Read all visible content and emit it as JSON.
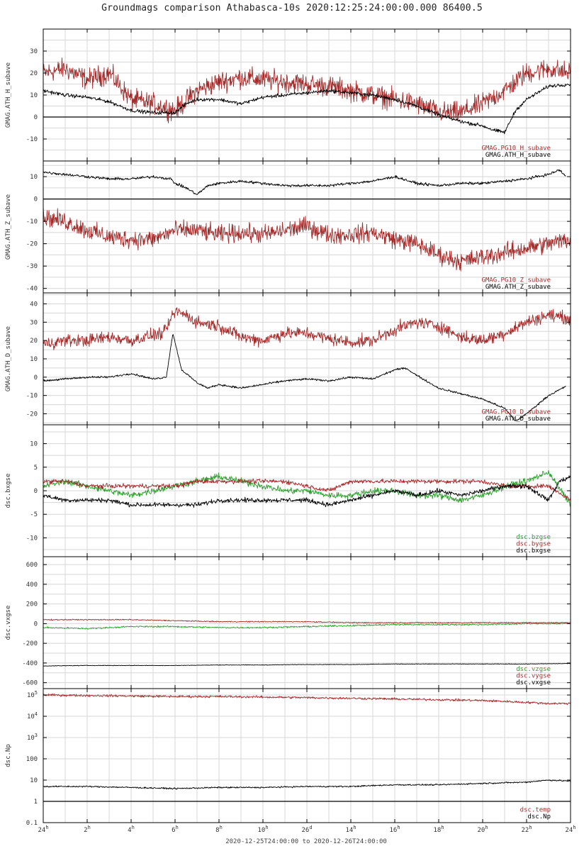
{
  "page": {
    "title": "Groundmags comparison Athabasca-10s 2020:12:25:24:00:00.000 86400.5",
    "x_range_label": "2020-12-25T24:00:00 to 2020-12-26T24:00:00"
  },
  "colors": {
    "red": "#a52a2a",
    "black": "#000000",
    "green": "#2ca02c",
    "grid": "#d7d7d7"
  },
  "chart_data": [
    {
      "type": "line",
      "ylabel": "GMAG.ATH_H_subave",
      "ylim": [
        -20,
        40
      ],
      "yticks": [
        30,
        20,
        10,
        0,
        -10
      ],
      "zero_line": 0,
      "legend": [
        "GMAG.PG10_H_subave",
        "GMAG.ATH_H_subave"
      ],
      "series": [
        {
          "name": "GMAG.PG10_H_subave",
          "color": "#a52a2a",
          "x": [
            0,
            1,
            2,
            3,
            4,
            5,
            6,
            7,
            8,
            9,
            10,
            11,
            12,
            13,
            14,
            15,
            16,
            17,
            18,
            19,
            20,
            21,
            22,
            23,
            24
          ],
          "y": [
            20,
            22,
            17,
            20,
            8,
            6,
            3,
            12,
            16,
            18,
            17,
            16,
            15,
            14,
            12,
            10,
            8,
            6,
            2,
            2,
            6,
            12,
            20,
            22,
            20
          ],
          "noise": 7
        },
        {
          "name": "GMAG.ATH_H_subave",
          "color": "#000000",
          "x": [
            0,
            1,
            2,
            3,
            4,
            5,
            6,
            6.5,
            7,
            8,
            9,
            10,
            11,
            12,
            13,
            14,
            15,
            16,
            17,
            18,
            19,
            20,
            20.5,
            21,
            21.5,
            22,
            23,
            24
          ],
          "y": [
            12,
            10,
            9,
            7,
            3,
            2,
            2,
            6,
            8,
            8,
            6,
            9,
            10,
            11,
            12,
            11,
            10,
            8,
            5,
            1,
            -2,
            -4,
            -6,
            -7,
            3,
            8,
            14,
            15
          ],
          "noise": 1.2
        }
      ]
    },
    {
      "type": "line",
      "ylabel": "GMAG.ATH_Z_subave",
      "ylim": [
        -42,
        17
      ],
      "yticks": [
        10,
        0,
        -10,
        -20,
        -30,
        -40
      ],
      "zero_line": 0,
      "legend": [
        "GMAG.PG10_Z_subave",
        "GMAG.ATH_Z_subave"
      ],
      "series": [
        {
          "name": "GMAG.PG10_Z_subave",
          "color": "#a52a2a",
          "x": [
            0,
            1,
            2,
            3,
            4,
            5,
            6,
            7,
            8,
            9,
            10,
            11,
            12,
            13,
            14,
            15,
            16,
            17,
            18,
            19,
            20,
            21,
            22,
            23,
            24
          ],
          "y": [
            -8,
            -10,
            -14,
            -17,
            -18,
            -18,
            -14,
            -14,
            -16,
            -15,
            -16,
            -14,
            -12,
            -16,
            -16,
            -15,
            -18,
            -20,
            -25,
            -28,
            -26,
            -24,
            -22,
            -20,
            -18
          ],
          "noise": 6
        },
        {
          "name": "GMAG.ATH_Z_subave",
          "color": "#000000",
          "x": [
            0,
            1,
            2,
            3,
            4,
            5,
            5.8,
            6,
            6.5,
            7,
            7.5,
            8,
            9,
            10,
            11,
            12,
            13,
            14,
            15,
            16,
            17,
            18,
            19,
            20,
            21,
            22,
            23,
            23.5,
            23.8
          ],
          "y": [
            12,
            11,
            10,
            9,
            9,
            10,
            9,
            7,
            5,
            2,
            6,
            7,
            8,
            7,
            6,
            6,
            6,
            7,
            8,
            10,
            7,
            6,
            7,
            7,
            8,
            9,
            11,
            13,
            10
          ],
          "noise": 0.9
        }
      ]
    },
    {
      "type": "line",
      "ylabel": "GMAG.ATH_D_subave",
      "ylim": [
        -26,
        46
      ],
      "yticks": [
        40,
        30,
        20,
        10,
        0,
        -10,
        -20
      ],
      "zero_line": null,
      "legend": [
        "GMAG.PG10_D_subave",
        "GMAG.ATH_D_subave"
      ],
      "series": [
        {
          "name": "GMAG.PG10_D_subave",
          "color": "#a52a2a",
          "x": [
            0,
            1,
            2,
            3,
            4,
            5,
            5.5,
            6,
            6.5,
            7,
            8,
            9,
            10,
            11,
            12,
            13,
            14,
            15,
            16,
            17,
            18,
            19,
            20,
            21,
            22,
            23,
            24
          ],
          "y": [
            18,
            20,
            20,
            22,
            20,
            23,
            24,
            36,
            34,
            30,
            28,
            22,
            20,
            24,
            24,
            21,
            19,
            20,
            26,
            30,
            28,
            22,
            20,
            24,
            30,
            34,
            32
          ],
          "noise": 5
        },
        {
          "name": "GMAG.ATH_D_subave",
          "color": "#000000",
          "x": [
            0,
            1,
            2,
            3,
            4,
            5,
            5.6,
            5.9,
            6.3,
            7,
            7.5,
            8,
            9,
            10,
            11,
            12,
            13,
            14,
            15,
            16,
            16.5,
            17,
            18,
            19,
            20,
            21,
            21.5,
            22,
            23,
            23.8
          ],
          "y": [
            -2,
            -1,
            0,
            0,
            2,
            -1,
            0,
            24,
            4,
            -3,
            -6,
            -4,
            -6,
            -4,
            -2,
            -1,
            -2,
            0,
            -1,
            4,
            5,
            1,
            -6,
            -9,
            -12,
            -17,
            -24,
            -20,
            -10,
            -5
          ],
          "noise": 0.8
        }
      ]
    },
    {
      "type": "line",
      "ylabel": "dsc.bxgse",
      "ylim": [
        -14,
        14
      ],
      "yticks": [
        10,
        5,
        0,
        -5,
        -10
      ],
      "zero_line": null,
      "legend": [
        "dsc.bzgse",
        "dsc.bygse",
        "dsc.bxgse"
      ],
      "series": [
        {
          "name": "dsc.bzgse",
          "color": "#2ca02c",
          "x": [
            0,
            1,
            2,
            3,
            4,
            5,
            6,
            7,
            8,
            9,
            10,
            11,
            12,
            13,
            14,
            15,
            16,
            17,
            18,
            19,
            20,
            21,
            22,
            23,
            24
          ],
          "y": [
            1,
            2,
            1,
            0,
            -1,
            0,
            1,
            2,
            3,
            2,
            1,
            0,
            0,
            -1,
            -1,
            0,
            0,
            -1,
            -1,
            -2,
            -1,
            1,
            2,
            4,
            -3
          ],
          "noise": 1
        },
        {
          "name": "dsc.bygse",
          "color": "#a52a2a",
          "x": [
            0,
            1,
            2,
            3,
            4,
            5,
            6,
            7,
            8,
            9,
            10,
            11,
            12,
            13,
            14,
            15,
            16,
            17,
            18,
            19,
            20,
            21,
            22,
            23,
            24
          ],
          "y": [
            2,
            2,
            1,
            1,
            1,
            1,
            1,
            2,
            2,
            2,
            2,
            2,
            1,
            0,
            2,
            2,
            2,
            2,
            2,
            2,
            2,
            1,
            1,
            1,
            -2
          ],
          "noise": 0.7
        },
        {
          "name": "dsc.bxgse",
          "color": "#000000",
          "x": [
            0,
            1,
            2,
            3,
            4,
            5,
            6,
            7,
            8,
            9,
            10,
            11,
            12,
            13,
            14,
            15,
            16,
            17,
            18,
            19,
            20,
            21,
            22,
            23,
            23.5,
            24
          ],
          "y": [
            -1,
            -2,
            -2,
            -2,
            -3,
            -3,
            -3,
            -3,
            -2,
            -2,
            -2,
            -2,
            -2,
            -3,
            -2,
            -1,
            0,
            -1,
            0,
            -1,
            0,
            1,
            1,
            -2,
            2,
            3
          ],
          "noise": 0.7
        }
      ]
    },
    {
      "type": "line",
      "ylabel": "dsc.vxgse",
      "ylim": [
        -660,
        680
      ],
      "yticks": [
        600,
        400,
        200,
        0,
        -200,
        -400,
        -600
      ],
      "zero_line": null,
      "legend": [
        "dsc.vzgse",
        "dsc.vygse",
        "dsc.vxgse"
      ],
      "series": [
        {
          "name": "dsc.vzgse",
          "color": "#2ca02c",
          "x": [
            0,
            2,
            4,
            6,
            8,
            10,
            12,
            14,
            16,
            18,
            20,
            22,
            24
          ],
          "y": [
            -40,
            -50,
            -30,
            -30,
            -40,
            -40,
            -30,
            -20,
            -10,
            -10,
            -10,
            0,
            0
          ],
          "noise": 12
        },
        {
          "name": "dsc.vygse",
          "color": "#a52a2a",
          "x": [
            0,
            2,
            4,
            6,
            8,
            10,
            12,
            14,
            16,
            18,
            20,
            22,
            24
          ],
          "y": [
            40,
            40,
            40,
            30,
            20,
            20,
            20,
            10,
            10,
            10,
            10,
            10,
            10
          ],
          "noise": 8
        },
        {
          "name": "dsc.vxgse",
          "color": "#000000",
          "x": [
            0,
            2,
            4,
            6,
            8,
            10,
            12,
            14,
            16,
            18,
            20,
            22,
            24
          ],
          "y": [
            -430,
            -425,
            -425,
            -425,
            -420,
            -420,
            -415,
            -415,
            -410,
            -410,
            -410,
            -410,
            -405
          ],
          "noise": 4
        }
      ]
    },
    {
      "type": "line",
      "ylabel": "dsc.Np",
      "yscale": "log",
      "ylim": [
        0.1,
        200000
      ],
      "yticks": [
        "10^5",
        "10^4",
        "10^3",
        "100",
        "10",
        "1",
        "0.1"
      ],
      "zero_line": 1,
      "legend": [
        "dsc.temp",
        "dsc.Np"
      ],
      "series": [
        {
          "name": "dsc.temp",
          "color": "#a52a2a",
          "x": [
            0,
            2,
            4,
            6,
            8,
            10,
            12,
            14,
            16,
            18,
            20,
            22,
            23,
            24
          ],
          "y": [
            100000,
            95000,
            90000,
            85000,
            85000,
            80000,
            75000,
            70000,
            65000,
            60000,
            55000,
            45000,
            40000,
            40000
          ],
          "noise": 0.08
        },
        {
          "name": "dsc.Np",
          "color": "#000000",
          "x": [
            0,
            2,
            4,
            6,
            8,
            10,
            12,
            14,
            16,
            18,
            20,
            22,
            23,
            24
          ],
          "y": [
            5,
            5,
            4.5,
            4,
            4.5,
            4.5,
            5,
            5,
            6,
            6,
            7,
            8,
            10,
            9
          ],
          "noise": 0.05
        }
      ]
    }
  ],
  "x_ticks": [
    {
      "value": 0,
      "label": "24",
      "sup": "h"
    },
    {
      "value": 2,
      "label": "2",
      "sup": "h"
    },
    {
      "value": 4,
      "label": "4",
      "sup": "h"
    },
    {
      "value": 6,
      "label": "6",
      "sup": "h"
    },
    {
      "value": 8,
      "label": "8",
      "sup": "h"
    },
    {
      "value": 10,
      "label": "10",
      "sup": "h"
    },
    {
      "value": 12,
      "label": "26",
      "sup": "d"
    },
    {
      "value": 14,
      "label": "14",
      "sup": "h"
    },
    {
      "value": 16,
      "label": "16",
      "sup": "h"
    },
    {
      "value": 18,
      "label": "18",
      "sup": "h"
    },
    {
      "value": 20,
      "label": "20",
      "sup": "h"
    },
    {
      "value": 22,
      "label": "22",
      "sup": "h"
    },
    {
      "value": 24,
      "label": "24",
      "sup": "h"
    }
  ],
  "xlim": [
    0,
    24
  ]
}
